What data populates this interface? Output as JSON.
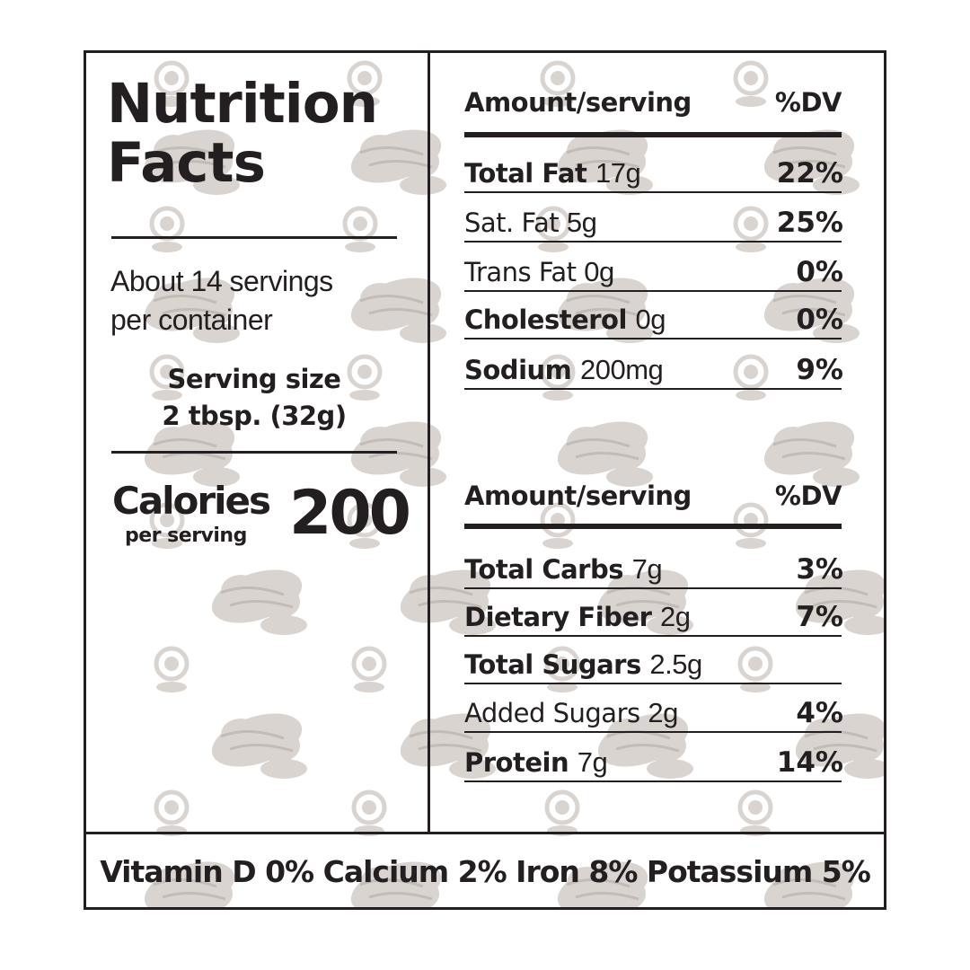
{
  "title_line1": "Nutrition",
  "title_line2": "Facts",
  "servings_line1": "About 14 servings",
  "servings_line2": "per container",
  "serving_size_label": "Serving size",
  "serving_size_value": "2 tbsp. (32g)",
  "calories_label": "Calories",
  "calories_sub": "per serving",
  "calories_value": "200",
  "header1": {
    "label": "Amount/serving",
    "dv": "%DV"
  },
  "section1": [
    {
      "name": "Total Fat",
      "amount": "17g",
      "dv": "22%",
      "bold": true
    },
    {
      "name": "Sat. Fat",
      "amount": "5g",
      "dv": "25%",
      "bold": false
    },
    {
      "name": "Trans Fat",
      "amount": "0g",
      "dv": "0%",
      "bold": false
    },
    {
      "name": "Cholesterol",
      "amount": "0g",
      "dv": "0%",
      "bold": true
    },
    {
      "name": "Sodium",
      "amount": "200mg",
      "dv": "9%",
      "bold": true
    }
  ],
  "header2": {
    "label": "Amount/serving",
    "dv": "%DV"
  },
  "section2": [
    {
      "name": "Total Carbs",
      "amount": "7g",
      "dv": "3%",
      "bold": true
    },
    {
      "name": "Dietary Fiber",
      "amount": "2g",
      "dv": "7%",
      "bold": true
    },
    {
      "name": "Total Sugars",
      "amount": "2.5g",
      "dv": "",
      "bold": true
    },
    {
      "name": "Added Sugars",
      "amount": "2g",
      "dv": "4%",
      "bold": false
    },
    {
      "name": "Protein",
      "amount": "7g",
      "dv": "14%",
      "bold": true
    }
  ],
  "vitamins": "Vitamin D 0% Calcium 2% Iron 8% Potassium 5%",
  "colors": {
    "ink": "#231f20",
    "pattern": "#d9d4d0",
    "pattern_dark": "#c2bbb6"
  },
  "pattern_icon": "peanut-pattern-icon"
}
